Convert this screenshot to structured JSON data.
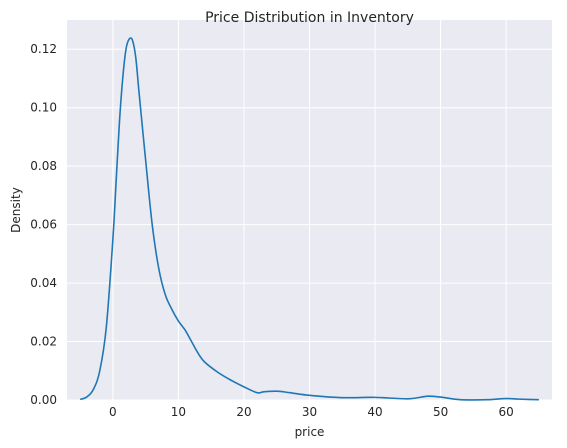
{
  "chart_data": {
    "type": "line",
    "title": "Price Distribution in Inventory",
    "xlabel": "price",
    "ylabel": "Density",
    "xlim": [
      -7,
      67
    ],
    "ylim": [
      0,
      0.13
    ],
    "xticks": [
      0,
      10,
      20,
      30,
      40,
      50,
      60
    ],
    "xtick_labels": [
      "0",
      "10",
      "20",
      "30",
      "40",
      "50",
      "60"
    ],
    "yticks": [
      0.0,
      0.02,
      0.04,
      0.06,
      0.08,
      0.1,
      0.12
    ],
    "ytick_labels": [
      "0.00",
      "0.02",
      "0.04",
      "0.06",
      "0.08",
      "0.10",
      "0.12"
    ],
    "grid": true,
    "colors": {
      "background": "#eaeaf2",
      "grid": "#ffffff",
      "line": "#1f77b4"
    },
    "series": [
      {
        "x": [
          -5.0,
          -4.0,
          -3.0,
          -2.0,
          -1.0,
          0.0,
          0.5,
          1.0,
          1.5,
          2.0,
          2.5,
          3.0,
          3.5,
          4.0,
          5.0,
          6.0,
          7.0,
          8.0,
          9.0,
          10.0,
          11.0,
          12.0,
          13.0,
          14.0,
          16.0,
          18.0,
          20.0,
          22.0,
          23.0,
          25.0,
          27.0,
          30.0,
          35.0,
          40.0,
          45.0,
          48.0,
          50.0,
          53.0,
          57.0,
          60.0,
          62.0,
          65.0
        ],
        "y": [
          0.0002,
          0.001,
          0.0035,
          0.01,
          0.025,
          0.055,
          0.075,
          0.095,
          0.11,
          0.12,
          0.1235,
          0.123,
          0.117,
          0.105,
          0.082,
          0.06,
          0.045,
          0.036,
          0.031,
          0.027,
          0.024,
          0.02,
          0.016,
          0.013,
          0.0095,
          0.0068,
          0.0045,
          0.0025,
          0.0028,
          0.003,
          0.0025,
          0.0016,
          0.0008,
          0.0009,
          0.0004,
          0.0013,
          0.001,
          0.0001,
          0.0001,
          0.0005,
          0.0003,
          0.0001
        ]
      }
    ]
  }
}
